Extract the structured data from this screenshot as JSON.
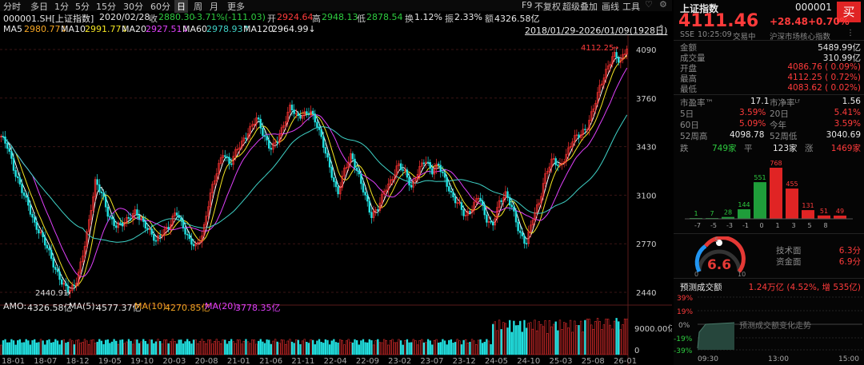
{
  "toolbar": {
    "periods": [
      "分时",
      "多日",
      "1分",
      "5分",
      "15分",
      "30分",
      "60分",
      "日",
      "周",
      "月",
      "更多"
    ],
    "selected": "日",
    "right_items": [
      "F9",
      "不复权",
      "超级叠加",
      "画线",
      "工具"
    ],
    "icons": [
      "heart-icon",
      "settings-icon"
    ]
  },
  "info": {
    "code": "000001.SH[上证指数]",
    "date": "2020/02/28",
    "close_label": "收",
    "close": "2880.30",
    "change": "-3.71%(-111.03)",
    "open_label": "开",
    "open": "2924.64",
    "high_label": "高",
    "high": "2948.13",
    "low_label": "低",
    "low": "2878.54",
    "turnover_label": "换",
    "turnover": "1.12%",
    "amp_label": "振",
    "amp": "2.33%",
    "amount_label": "额",
    "amount": "4326.58亿"
  },
  "ma": {
    "ma5_label": "MA5",
    "ma5": "2980.77↓",
    "ma10_label": "MA10",
    "ma10": "2991.77↓",
    "ma20_label": "MA20",
    "ma20": "2927.51↓",
    "ma60_label": "MA60",
    "ma60": "2978.93↑",
    "ma120_label": "MA120",
    "ma120": "2964.99↓",
    "range": "2018/01/29-2026/01/09(1928日)"
  },
  "vol_info": {
    "amo_label": "AMO:",
    "amo": "4326.58亿",
    "ma5_label": "MA(5):",
    "ma5": "4577.37亿",
    "ma10_label": "MA(10):",
    "ma10": "4270.85亿",
    "ma20_label": "MA(20):",
    "ma20": "3778.35亿"
  },
  "chart_data": {
    "type": "candlestick",
    "y_ticks": [
      "4090",
      "3760",
      "3430",
      "3100",
      "2770",
      "2440"
    ],
    "ylim": [
      2440,
      4090
    ],
    "x_ticks": [
      "18-01",
      "18-07",
      "18-12",
      "19-05",
      "19-10",
      "20-03",
      "20-08",
      "21-01",
      "21-06",
      "21-11",
      "22-04",
      "22-09",
      "23-02",
      "23-07",
      "23-12",
      "24-05",
      "24-10",
      "25-03",
      "25-08",
      "26-01"
    ],
    "low_marker": "2440.91",
    "high_marker": "4112.25",
    "close_series": [
      3500,
      3420,
      3250,
      3150,
      3050,
      2900,
      2820,
      2720,
      2600,
      2520,
      2460,
      2480,
      2650,
      2900,
      3200,
      3120,
      2950,
      2880,
      2900,
      2950,
      3000,
      2920,
      2850,
      2780,
      2850,
      2900,
      3000,
      2880,
      2780,
      2750,
      2850,
      3100,
      3250,
      3380,
      3300,
      3420,
      3480,
      3550,
      3620,
      3500,
      3420,
      3480,
      3580,
      3700,
      3620,
      3650,
      3680,
      3580,
      3420,
      3250,
      3100,
      3280,
      3380,
      3250,
      3100,
      2950,
      3020,
      3150,
      3200,
      3300,
      3250,
      3150,
      3280,
      3350,
      3250,
      3300,
      3200,
      3100,
      3050,
      2950,
      3000,
      3100,
      2950,
      2900,
      3050,
      3100,
      3000,
      2850,
      2780,
      2950,
      3050,
      3250,
      3350,
      3300,
      3380,
      3480,
      3500,
      3550,
      3700,
      3850,
      3950,
      4050,
      4000,
      4111
    ],
    "volume_axis": [
      "9000.00亿",
      "0"
    ]
  },
  "side": {
    "name": "上证指数",
    "code": "000001",
    "buy": "买",
    "price": "4111.46",
    "change": "+28.48",
    "pct": "+0.70%",
    "exch": "SSE",
    "time": "10:25:09",
    "status": "交易中",
    "tag": "沪深市场核心指数",
    "amount_label": "金额",
    "amount": "5489.99亿",
    "volume_label": "成交量",
    "volume": "310.99亿",
    "open_label": "开盘",
    "open": "4086.76 ( 0.09%)",
    "high_label": "最高",
    "high": "4112.25 ( 0.72%)",
    "low_label": "最低",
    "low": "4083.62 ( 0.02%)",
    "pe_label": "市盈率™",
    "pe": "17.1",
    "pb_label": "市净率ᴸᶠ",
    "pb": "1.56",
    "d5_label": "5日",
    "d5": "3.59%",
    "d20_label": "20日",
    "d20": "5.41%",
    "d60_label": "60日",
    "d60": "5.09%",
    "ytd_label": "今年",
    "ytd": "3.59%",
    "w52h_label": "52周高",
    "w52h": "4098.78",
    "w52l_label": "52周低",
    "w52l": "3040.69",
    "fall_label": "跌",
    "fall": "749家",
    "flat_label": "平",
    "flat": "123家",
    "rise_label": "涨",
    "rise": "1469家",
    "dist_values": [
      "1",
      "7",
      "28",
      "144",
      "551",
      "768",
      "455",
      "131",
      "51",
      "49"
    ],
    "dist_labels": [
      "-7",
      "-5",
      "-3",
      "-1",
      "0",
      "1",
      "3",
      "5",
      "8"
    ],
    "gauge_value": "6.6",
    "gauge_min": "0",
    "gauge_mid": "5",
    "gauge_max": "10",
    "tech_label": "技术面",
    "tech": "6.3分",
    "fund_label": "资金面",
    "fund": "6.9分",
    "pred_label": "预测成交额",
    "pred_value": "1.24万亿 (4.52%, 增 535亿)",
    "pred_axis": [
      "39%",
      "19%",
      "0%",
      "-19%",
      "-39%"
    ],
    "pred_text": "预测成交额变化走势",
    "pred_times": [
      "09:30",
      "13:00",
      "15:00"
    ]
  }
}
